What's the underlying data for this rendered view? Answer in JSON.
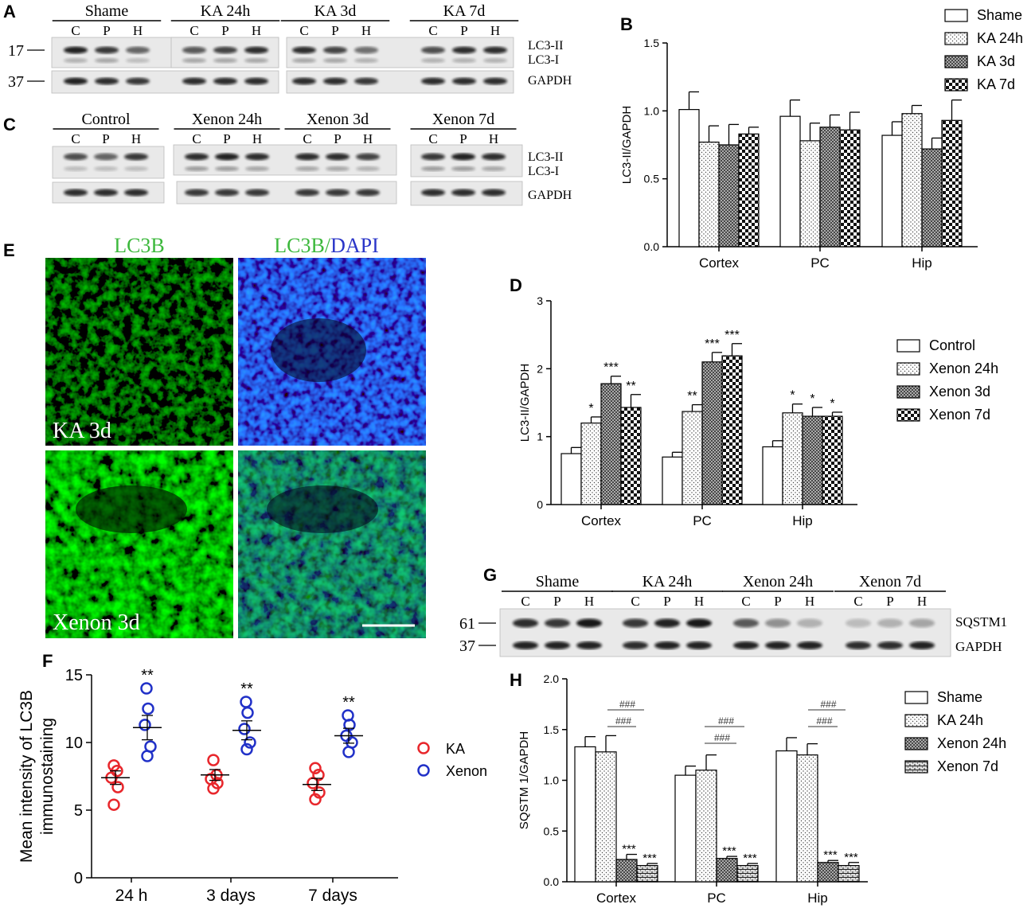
{
  "panels": {
    "a": {
      "letter": "A",
      "groups": [
        "Shame",
        "KA  24h",
        "KA  3d",
        "KA  7d"
      ],
      "lanes": [
        "C",
        "P",
        "H"
      ],
      "markers": [
        "17",
        "37"
      ],
      "bands": [
        "LC3-II",
        "LC3-I",
        "GAPDH"
      ]
    },
    "c": {
      "letter": "C",
      "groups": [
        "Control",
        "Xenon 24h",
        "Xenon 3d",
        "Xenon 7d"
      ],
      "lanes": [
        "C",
        "P",
        "H"
      ],
      "bands": [
        "LC3-II",
        "LC3-I",
        "GAPDH"
      ]
    },
    "e": {
      "letter": "E",
      "col_titles": {
        "lc3b": "LC3B",
        "lc3b_part": "LC3B/",
        "dapi_part": "DAPI"
      },
      "row_labels": [
        "KA 3d",
        "Xenon 3d"
      ]
    },
    "g": {
      "letter": "G",
      "groups": [
        "Shame",
        "KA 24h",
        "Xenon 24h",
        "Xenon 7d"
      ],
      "lanes": [
        "C",
        "P",
        "H"
      ],
      "markers": [
        "61",
        "37"
      ],
      "bands": [
        "SQSTM1",
        "GAPDH"
      ]
    },
    "b": {
      "letter": "B"
    },
    "d": {
      "letter": "D"
    },
    "f": {
      "letter": "F"
    },
    "h": {
      "letter": "H"
    }
  },
  "chart_data": [
    {
      "id": "B",
      "type": "bar",
      "ylabel": "LC3-II/GAPDH",
      "ylim": [
        0,
        1.5
      ],
      "yticks": [
        "0.0",
        "0.5",
        "1.0",
        "1.5"
      ],
      "categories": [
        "Cortex",
        "PC",
        "Hip"
      ],
      "series": [
        {
          "name": "Shame",
          "values": [
            1.01,
            0.96,
            0.82
          ],
          "errors": [
            0.13,
            0.12,
            0.1
          ]
        },
        {
          "name": "KA 24h",
          "values": [
            0.77,
            0.78,
            0.98
          ],
          "errors": [
            0.12,
            0.13,
            0.06
          ]
        },
        {
          "name": "KA 3d",
          "values": [
            0.75,
            0.88,
            0.72
          ],
          "errors": [
            0.15,
            0.09,
            0.08
          ]
        },
        {
          "name": "KA 7d",
          "values": [
            0.83,
            0.86,
            0.93
          ],
          "errors": [
            0.05,
            0.13,
            0.15
          ]
        }
      ],
      "significance": [],
      "legend": "top-right"
    },
    {
      "id": "D",
      "type": "bar",
      "ylabel": "LC3-II/GAPDH",
      "ylim": [
        0,
        3
      ],
      "yticks": [
        "0",
        "1",
        "2",
        "3"
      ],
      "categories": [
        "Cortex",
        "PC",
        "Hip"
      ],
      "series": [
        {
          "name": "Control",
          "values": [
            0.75,
            0.7,
            0.85
          ],
          "errors": [
            0.09,
            0.07,
            0.09
          ]
        },
        {
          "name": "Xenon 24h",
          "values": [
            1.2,
            1.37,
            1.35
          ],
          "errors": [
            0.09,
            0.1,
            0.13
          ]
        },
        {
          "name": "Xenon 3d",
          "values": [
            1.78,
            2.1,
            1.3
          ],
          "errors": [
            0.11,
            0.14,
            0.13
          ]
        },
        {
          "name": "Xenon 7d",
          "values": [
            1.43,
            2.19,
            1.3
          ],
          "errors": [
            0.19,
            0.18,
            0.06
          ]
        }
      ],
      "significance": [
        {
          "series": 1,
          "category": 0,
          "label": "*"
        },
        {
          "series": 2,
          "category": 0,
          "label": "***"
        },
        {
          "series": 3,
          "category": 0,
          "label": "**"
        },
        {
          "series": 1,
          "category": 1,
          "label": "**"
        },
        {
          "series": 2,
          "category": 1,
          "label": "***"
        },
        {
          "series": 3,
          "category": 1,
          "label": "***"
        },
        {
          "series": 1,
          "category": 2,
          "label": "*"
        },
        {
          "series": 2,
          "category": 2,
          "label": "*"
        },
        {
          "series": 3,
          "category": 2,
          "label": "*"
        }
      ],
      "legend": "right"
    },
    {
      "id": "F",
      "type": "scatter",
      "ylabel": "Mean intensity of LC3B immunostaining",
      "ylabel_lines": [
        "Mean intensity of LC3B",
        "immunostaining"
      ],
      "ylim": [
        0,
        15
      ],
      "yticks": [
        "0",
        "5",
        "10",
        "15"
      ],
      "categories": [
        "24 h",
        "3 days",
        "7 days"
      ],
      "series": [
        {
          "name": "KA",
          "color": "#e8272c",
          "points": [
            [
              5.4,
              6.7,
              7.4,
              7.9,
              8.3
            ],
            [
              6.6,
              7.0,
              7.3,
              7.6,
              8.7
            ],
            [
              5.8,
              6.3,
              7.0,
              7.6,
              8.1
            ]
          ],
          "means": [
            7.4,
            7.6,
            6.9
          ],
          "sems": [
            0.5,
            0.4,
            0.45
          ]
        },
        {
          "name": "Xenon",
          "color": "#2131c8",
          "points": [
            [
              9.0,
              9.7,
              11.3,
              12.5,
              14.0
            ],
            [
              9.5,
              10.0,
              11.0,
              12.2,
              13.0
            ],
            [
              9.3,
              10.0,
              10.5,
              11.3,
              12.0
            ]
          ],
          "means": [
            11.1,
            10.9,
            10.5
          ],
          "sems": [
            0.9,
            0.7,
            0.55
          ]
        }
      ],
      "significance": [
        {
          "category": 0,
          "label": "**"
        },
        {
          "category": 1,
          "label": "**"
        },
        {
          "category": 2,
          "label": "**"
        }
      ],
      "legend": "right"
    },
    {
      "id": "H",
      "type": "bar",
      "ylabel": "SQSTM 1/GAPDH",
      "ylim": [
        0,
        2
      ],
      "yticks": [
        "0.0",
        "0.5",
        "1.0",
        "1.5",
        "2.0"
      ],
      "categories": [
        "Cortex",
        "PC",
        "Hip"
      ],
      "series": [
        {
          "name": "Shame",
          "values": [
            1.33,
            1.05,
            1.29
          ],
          "errors": [
            0.1,
            0.09,
            0.13
          ]
        },
        {
          "name": "KA 24h",
          "values": [
            1.28,
            1.1,
            1.25
          ],
          "errors": [
            0.16,
            0.15,
            0.11
          ]
        },
        {
          "name": "Xenon 24h",
          "values": [
            0.22,
            0.23,
            0.19
          ],
          "errors": [
            0.05,
            0.02,
            0.02
          ]
        },
        {
          "name": "Xenon 7d",
          "values": [
            0.16,
            0.16,
            0.16
          ],
          "errors": [
            0.02,
            0.02,
            0.03
          ]
        }
      ],
      "significance": [
        {
          "series": 2,
          "category": 0,
          "label": "***"
        },
        {
          "series": 3,
          "category": 0,
          "label": "***"
        },
        {
          "series": 2,
          "category": 1,
          "label": "***"
        },
        {
          "series": 3,
          "category": 1,
          "label": "***"
        },
        {
          "series": 2,
          "category": 2,
          "label": "***"
        },
        {
          "series": 3,
          "category": 2,
          "label": "***"
        }
      ],
      "brackets_label": "###",
      "legend": "right"
    }
  ]
}
